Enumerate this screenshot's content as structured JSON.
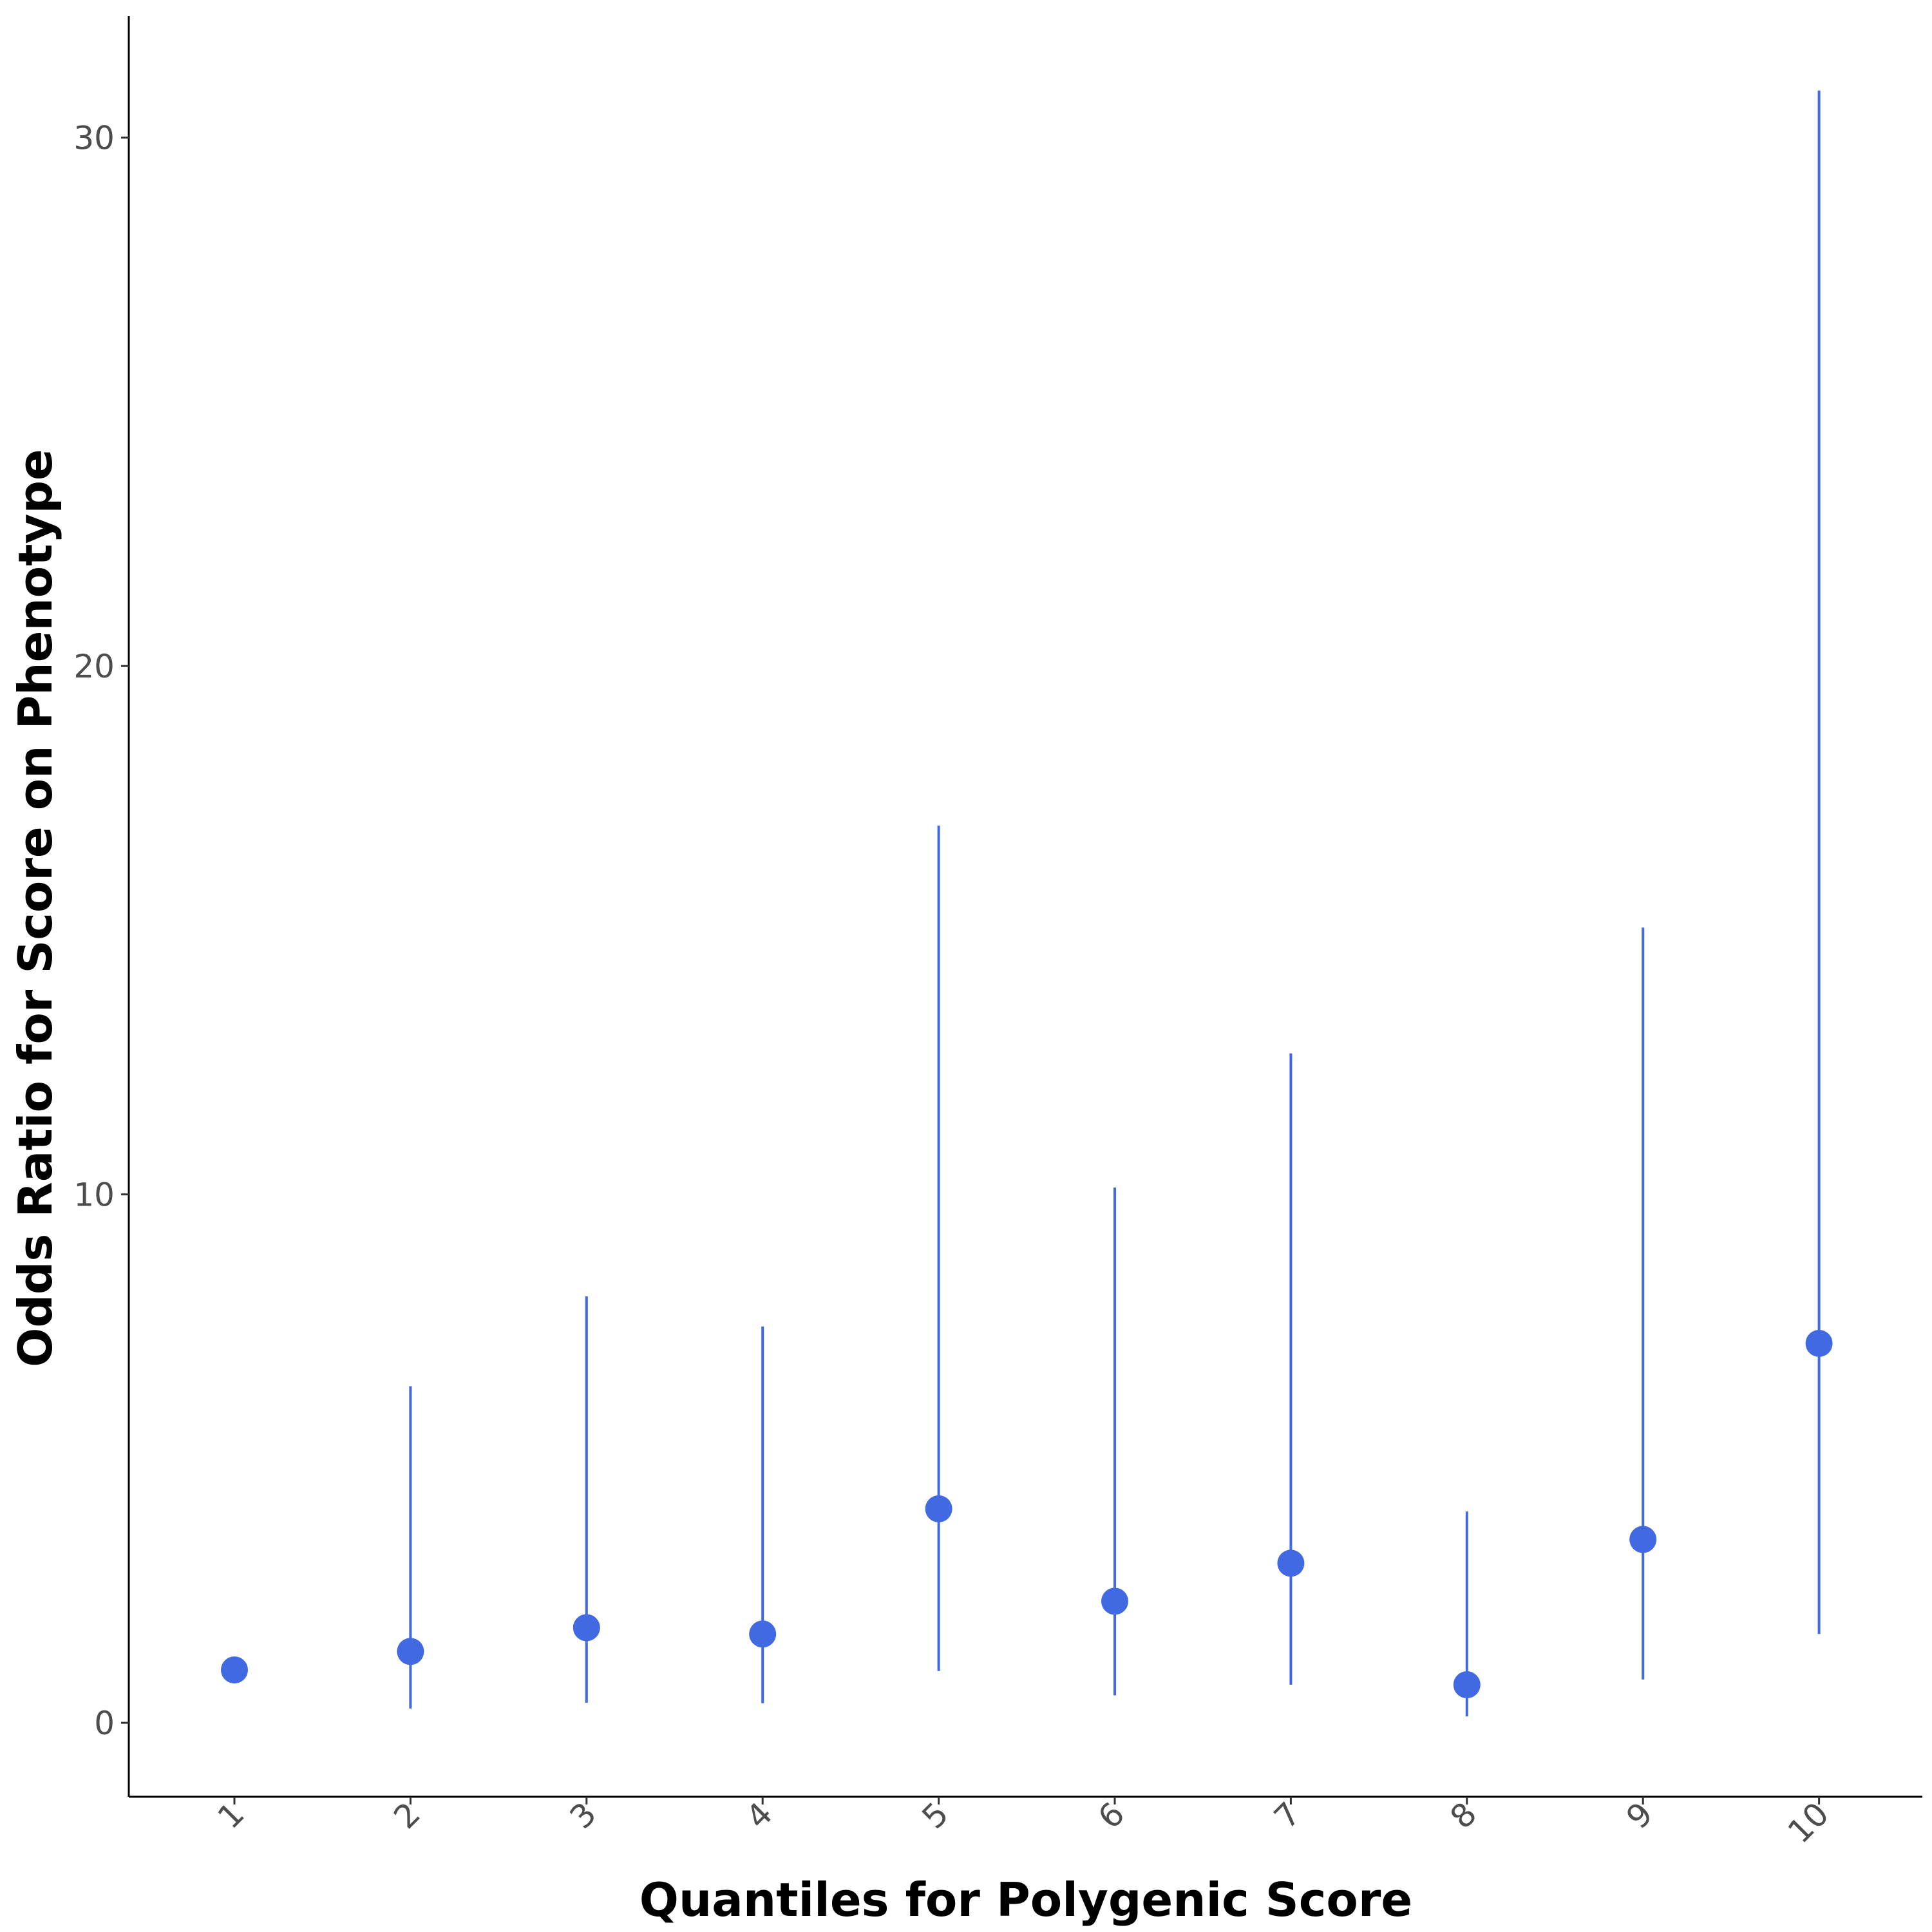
{
  "chart_data": {
    "type": "scatter",
    "subtype": "point-with-error-bars",
    "title": "",
    "xlabel": "Quantiles for Polygenic Score",
    "ylabel": "Odds Ratio for Score on Phenotype",
    "categories": [
      "1",
      "2",
      "3",
      "4",
      "5",
      "6",
      "7",
      "8",
      "9",
      "10"
    ],
    "values": [
      1.0,
      1.35,
      1.8,
      1.68,
      4.05,
      2.3,
      3.02,
      0.72,
      3.47,
      7.18
    ],
    "lower": [
      null,
      0.27,
      0.38,
      0.37,
      0.98,
      0.52,
      0.72,
      0.12,
      0.82,
      1.68
    ],
    "upper": [
      null,
      6.37,
      8.07,
      7.5,
      16.98,
      10.13,
      12.67,
      4.0,
      15.05,
      30.89
    ],
    "yticks": [
      0,
      10,
      20,
      30
    ],
    "ylim": [
      -1.4,
      32.3
    ],
    "grid": false,
    "legend": "none",
    "color": "#4169E1",
    "tick_label_color": "#4d4d4d"
  }
}
